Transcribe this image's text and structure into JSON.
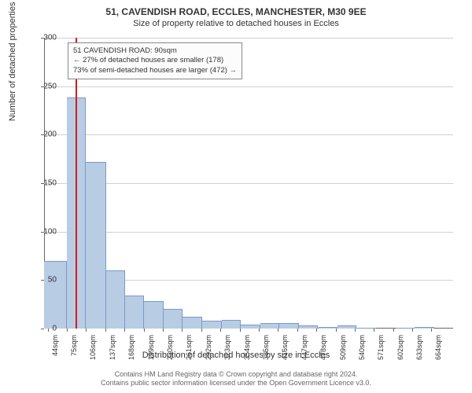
{
  "title": "51, CAVENDISH ROAD, ECCLES, MANCHESTER, M30 9EE",
  "subtitle": "Size of property relative to detached houses in Eccles",
  "chart": {
    "type": "bar",
    "xlabel": "Distribution of detached houses by size in Eccles",
    "ylabel": "Number of detached properties",
    "ylim": [
      0,
      300
    ],
    "ytick_step": 50,
    "bar_color": "#b8cce4",
    "bar_border": "#7a9ac8",
    "highlight_color": "#d01c1c",
    "background": "#ffffff",
    "grid_color": "#d0d0d0",
    "axis_color": "#666666",
    "label_fontsize": 11,
    "tick_fontsize": 10,
    "x_tick_interval": 5,
    "x_tick_start": 44,
    "x_tick_step": 31,
    "bins": [
      {
        "x": 38,
        "v": 70
      },
      {
        "x": 44,
        "v": 70
      },
      {
        "x": 50,
        "v": 70
      },
      {
        "x": 56,
        "v": 70
      },
      {
        "x": 63,
        "v": 70
      },
      {
        "x": 69,
        "v": 70
      },
      {
        "x": 75,
        "v": 238
      },
      {
        "x": 81,
        "v": 238
      },
      {
        "x": 88,
        "v": 238
      },
      {
        "x": 94,
        "v": 238
      },
      {
        "x": 100,
        "v": 238
      },
      {
        "x": 106,
        "v": 172
      },
      {
        "x": 113,
        "v": 172
      },
      {
        "x": 119,
        "v": 172
      },
      {
        "x": 125,
        "v": 172
      },
      {
        "x": 131,
        "v": 172
      },
      {
        "x": 138,
        "v": 60
      },
      {
        "x": 144,
        "v": 60
      },
      {
        "x": 150,
        "v": 60
      },
      {
        "x": 156,
        "v": 60
      },
      {
        "x": 163,
        "v": 60
      },
      {
        "x": 169,
        "v": 34
      },
      {
        "x": 175,
        "v": 34
      },
      {
        "x": 181,
        "v": 34
      },
      {
        "x": 188,
        "v": 34
      },
      {
        "x": 194,
        "v": 34
      },
      {
        "x": 200,
        "v": 28
      },
      {
        "x": 206,
        "v": 28
      },
      {
        "x": 213,
        "v": 28
      },
      {
        "x": 219,
        "v": 28
      },
      {
        "x": 225,
        "v": 28
      },
      {
        "x": 231,
        "v": 20
      },
      {
        "x": 238,
        "v": 20
      },
      {
        "x": 244,
        "v": 20
      },
      {
        "x": 250,
        "v": 20
      },
      {
        "x": 256,
        "v": 20
      },
      {
        "x": 262,
        "v": 12
      },
      {
        "x": 269,
        "v": 12
      },
      {
        "x": 275,
        "v": 12
      },
      {
        "x": 281,
        "v": 12
      },
      {
        "x": 288,
        "v": 12
      },
      {
        "x": 294,
        "v": 8
      },
      {
        "x": 300,
        "v": 8
      },
      {
        "x": 306,
        "v": 8
      },
      {
        "x": 312,
        "v": 8
      },
      {
        "x": 319,
        "v": 8
      },
      {
        "x": 325,
        "v": 9
      },
      {
        "x": 331,
        "v": 9
      },
      {
        "x": 338,
        "v": 9
      },
      {
        "x": 344,
        "v": 9
      },
      {
        "x": 350,
        "v": 9
      },
      {
        "x": 356,
        "v": 4
      },
      {
        "x": 362,
        "v": 4
      },
      {
        "x": 369,
        "v": 4
      },
      {
        "x": 375,
        "v": 4
      },
      {
        "x": 381,
        "v": 4
      },
      {
        "x": 387,
        "v": 6
      },
      {
        "x": 394,
        "v": 6
      },
      {
        "x": 400,
        "v": 6
      },
      {
        "x": 406,
        "v": 6
      },
      {
        "x": 412,
        "v": 6
      },
      {
        "x": 418,
        "v": 6
      },
      {
        "x": 425,
        "v": 6
      },
      {
        "x": 431,
        "v": 6
      },
      {
        "x": 437,
        "v": 6
      },
      {
        "x": 444,
        "v": 6
      },
      {
        "x": 450,
        "v": 3
      },
      {
        "x": 456,
        "v": 3
      },
      {
        "x": 462,
        "v": 3
      },
      {
        "x": 468,
        "v": 3
      },
      {
        "x": 475,
        "v": 3
      },
      {
        "x": 481,
        "v": 2
      },
      {
        "x": 487,
        "v": 2
      },
      {
        "x": 494,
        "v": 2
      },
      {
        "x": 500,
        "v": 2
      },
      {
        "x": 506,
        "v": 2
      },
      {
        "x": 512,
        "v": 3
      },
      {
        "x": 518,
        "v": 3
      },
      {
        "x": 525,
        "v": 3
      },
      {
        "x": 531,
        "v": 3
      },
      {
        "x": 537,
        "v": 3
      },
      {
        "x": 543,
        "v": 1
      },
      {
        "x": 550,
        "v": 1
      },
      {
        "x": 556,
        "v": 1
      },
      {
        "x": 562,
        "v": 1
      },
      {
        "x": 568,
        "v": 1
      },
      {
        "x": 574,
        "v": 0
      },
      {
        "x": 581,
        "v": 0
      },
      {
        "x": 587,
        "v": 0
      },
      {
        "x": 593,
        "v": 0
      },
      {
        "x": 599,
        "v": 0
      },
      {
        "x": 606,
        "v": 1
      },
      {
        "x": 612,
        "v": 1
      },
      {
        "x": 618,
        "v": 1
      },
      {
        "x": 625,
        "v": 1
      },
      {
        "x": 631,
        "v": 1
      },
      {
        "x": 637,
        "v": 2
      },
      {
        "x": 643,
        "v": 2
      },
      {
        "x": 650,
        "v": 2
      },
      {
        "x": 656,
        "v": 2
      },
      {
        "x": 662,
        "v": 2
      },
      {
        "x": 668,
        "v": 0
      }
    ],
    "groups": [
      {
        "start": 38,
        "end": 75,
        "v": 70
      },
      {
        "start": 75,
        "end": 106,
        "v": 238
      },
      {
        "start": 106,
        "end": 138,
        "v": 172
      },
      {
        "start": 138,
        "end": 169,
        "v": 60
      },
      {
        "start": 169,
        "end": 200,
        "v": 34
      },
      {
        "start": 200,
        "end": 231,
        "v": 28
      },
      {
        "start": 231,
        "end": 262,
        "v": 20
      },
      {
        "start": 262,
        "end": 294,
        "v": 12
      },
      {
        "start": 294,
        "end": 325,
        "v": 8
      },
      {
        "start": 325,
        "end": 356,
        "v": 9
      },
      {
        "start": 356,
        "end": 387,
        "v": 4
      },
      {
        "start": 387,
        "end": 418,
        "v": 6
      },
      {
        "start": 418,
        "end": 450,
        "v": 6
      },
      {
        "start": 450,
        "end": 481,
        "v": 3
      },
      {
        "start": 481,
        "end": 512,
        "v": 2
      },
      {
        "start": 512,
        "end": 543,
        "v": 3
      },
      {
        "start": 543,
        "end": 574,
        "v": 1
      },
      {
        "start": 574,
        "end": 606,
        "v": 0
      },
      {
        "start": 606,
        "end": 637,
        "v": 1
      },
      {
        "start": 637,
        "end": 668,
        "v": 2
      },
      {
        "start": 668,
        "end": 699,
        "v": 0
      }
    ],
    "xrange": [
      38,
      699
    ],
    "highlight_x": 90
  },
  "annotation": {
    "line1": "51 CAVENDISH ROAD: 90sqm",
    "line2": "← 27% of detached houses are smaller (178)",
    "line3": "73% of semi-detached houses are larger (472) →"
  },
  "attribution": {
    "line1": "Contains HM Land Registry data © Crown copyright and database right 2024.",
    "line2": "Contains public sector information licensed under the Open Government Licence v3.0."
  }
}
